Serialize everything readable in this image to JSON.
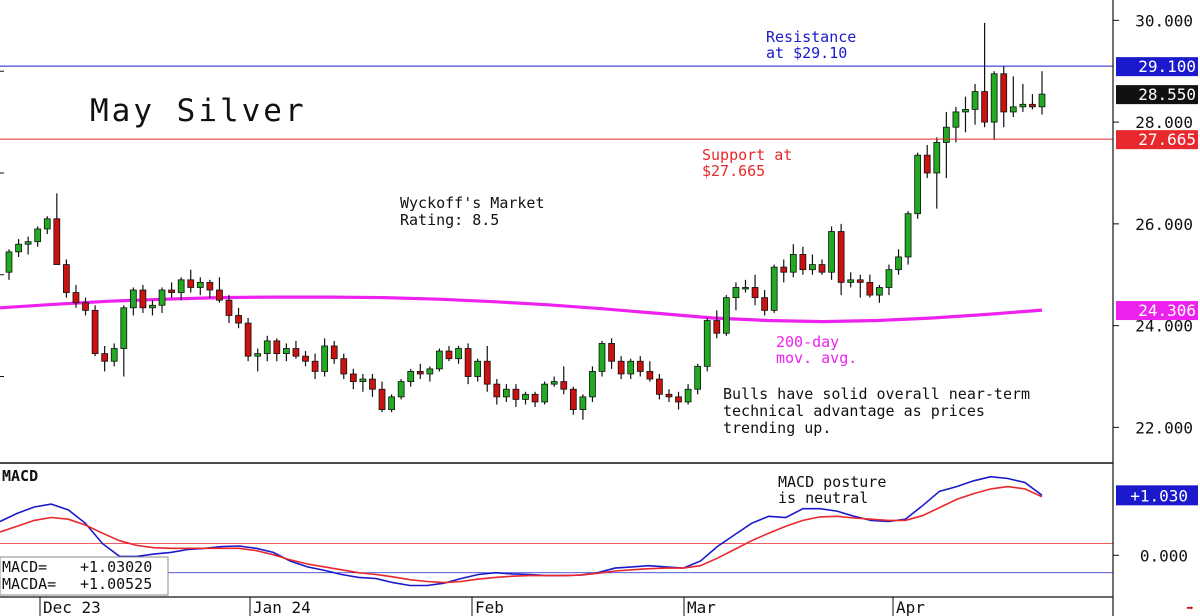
{
  "chart_data": [
    {
      "type": "candlestick",
      "title": "May Silver",
      "rating": [
        "Wyckoff's Market",
        "Rating: 8.5"
      ],
      "commentary": [
        "Bulls have solid overall near-term",
        "technical advantage as prices",
        "trending up."
      ],
      "ylim": [
        21.3,
        30.4
      ],
      "yticks": [
        {
          "value": 30,
          "label": "30.000"
        },
        {
          "value": 28,
          "label": "28.000"
        },
        {
          "value": 26,
          "label": "26.000"
        },
        {
          "value": 24,
          "label": "24.000"
        },
        {
          "value": 22,
          "label": "22.000"
        }
      ],
      "last_price": {
        "value": 28.55,
        "label": "28.550"
      },
      "resistance": {
        "value": 29.1,
        "label": "29.100",
        "text": [
          "Resistance",
          "at $29.10"
        ],
        "color": "#1a1acc"
      },
      "support": {
        "value": 27.665,
        "label": "27.665",
        "text": [
          "Support at",
          "$27.665"
        ],
        "color": "#e8282c"
      },
      "moving_average": {
        "label": "24.306",
        "text": [
          "200-day",
          "mov. avg."
        ],
        "color": "#ee22ee",
        "values": [
          24.35,
          24.42,
          24.48,
          24.52,
          24.55,
          24.56,
          24.56,
          24.55,
          24.52,
          24.47,
          24.41,
          24.33,
          24.24,
          24.15,
          24.1,
          24.08,
          24.1,
          24.15,
          24.22,
          24.306
        ]
      },
      "x_labels": [
        "Dec 23",
        "Jan 24",
        "Feb",
        "Mar",
        "Apr"
      ],
      "colors": {
        "up": "#22aa22",
        "down": "#cc1111",
        "wick": "#111111"
      },
      "candles": [
        [
          25.05,
          25.5,
          24.9,
          25.45
        ],
        [
          25.45,
          25.7,
          25.35,
          25.6
        ],
        [
          25.6,
          25.75,
          25.4,
          25.65
        ],
        [
          25.65,
          25.95,
          25.55,
          25.9
        ],
        [
          25.9,
          26.15,
          25.8,
          26.1
        ],
        [
          26.1,
          26.6,
          25.2,
          25.2
        ],
        [
          25.2,
          25.3,
          24.55,
          24.65
        ],
        [
          24.65,
          24.8,
          24.35,
          24.45
        ],
        [
          24.45,
          24.55,
          24.2,
          24.3
        ],
        [
          24.3,
          24.4,
          23.4,
          23.45
        ],
        [
          23.45,
          23.6,
          23.1,
          23.3
        ],
        [
          23.3,
          23.65,
          23.2,
          23.55
        ],
        [
          23.55,
          24.4,
          23.0,
          24.35
        ],
        [
          24.35,
          24.75,
          24.2,
          24.7
        ],
        [
          24.7,
          24.8,
          24.25,
          24.35
        ],
        [
          24.35,
          24.5,
          24.2,
          24.4
        ],
        [
          24.4,
          24.75,
          24.25,
          24.7
        ],
        [
          24.7,
          24.85,
          24.55,
          24.65
        ],
        [
          24.65,
          24.95,
          24.5,
          24.9
        ],
        [
          24.9,
          25.1,
          24.65,
          24.75
        ],
        [
          24.75,
          24.95,
          24.6,
          24.85
        ],
        [
          24.85,
          24.9,
          24.55,
          24.7
        ],
        [
          24.7,
          24.95,
          24.45,
          24.5
        ],
        [
          24.5,
          24.6,
          24.05,
          24.2
        ],
        [
          24.2,
          24.35,
          23.95,
          24.05
        ],
        [
          24.05,
          24.15,
          23.3,
          23.4
        ],
        [
          23.4,
          23.55,
          23.1,
          23.45
        ],
        [
          23.45,
          23.8,
          23.3,
          23.7
        ],
        [
          23.7,
          23.75,
          23.3,
          23.45
        ],
        [
          23.45,
          23.65,
          23.3,
          23.55
        ],
        [
          23.55,
          23.7,
          23.35,
          23.4
        ],
        [
          23.4,
          23.5,
          23.2,
          23.3
        ],
        [
          23.3,
          23.45,
          22.95,
          23.1
        ],
        [
          23.1,
          23.75,
          23.0,
          23.6
        ],
        [
          23.6,
          23.7,
          23.25,
          23.35
        ],
        [
          23.35,
          23.45,
          22.95,
          23.05
        ],
        [
          23.05,
          23.15,
          22.75,
          22.9
        ],
        [
          22.9,
          23.05,
          22.7,
          22.95
        ],
        [
          22.95,
          23.05,
          22.6,
          22.75
        ],
        [
          22.75,
          22.9,
          22.3,
          22.35
        ],
        [
          22.35,
          22.65,
          22.3,
          22.6
        ],
        [
          22.6,
          22.95,
          22.55,
          22.9
        ],
        [
          22.9,
          23.15,
          22.8,
          23.1
        ],
        [
          23.1,
          23.25,
          22.95,
          23.05
        ],
        [
          23.05,
          23.2,
          22.9,
          23.15
        ],
        [
          23.15,
          23.55,
          23.1,
          23.5
        ],
        [
          23.5,
          23.6,
          23.3,
          23.35
        ],
        [
          23.35,
          23.6,
          23.25,
          23.55
        ],
        [
          23.55,
          23.65,
          22.85,
          23.0
        ],
        [
          23.0,
          23.35,
          22.9,
          23.3
        ],
        [
          23.3,
          23.6,
          22.7,
          22.85
        ],
        [
          22.85,
          22.95,
          22.45,
          22.6
        ],
        [
          22.6,
          22.85,
          22.5,
          22.75
        ],
        [
          22.75,
          22.85,
          22.4,
          22.55
        ],
        [
          22.55,
          22.7,
          22.45,
          22.65
        ],
        [
          22.65,
          22.7,
          22.4,
          22.5
        ],
        [
          22.5,
          22.9,
          22.45,
          22.85
        ],
        [
          22.85,
          23.0,
          22.8,
          22.9
        ],
        [
          22.9,
          23.2,
          22.65,
          22.75
        ],
        [
          22.75,
          22.8,
          22.25,
          22.35
        ],
        [
          22.35,
          22.65,
          22.15,
          22.6
        ],
        [
          22.6,
          23.2,
          22.5,
          23.1
        ],
        [
          23.1,
          23.7,
          23.0,
          23.65
        ],
        [
          23.65,
          23.75,
          23.15,
          23.3
        ],
        [
          23.3,
          23.4,
          22.95,
          23.05
        ],
        [
          23.05,
          23.35,
          22.95,
          23.3
        ],
        [
          23.3,
          23.4,
          23.0,
          23.1
        ],
        [
          23.1,
          23.3,
          22.9,
          22.95
        ],
        [
          22.95,
          23.05,
          22.55,
          22.65
        ],
        [
          22.65,
          22.75,
          22.5,
          22.6
        ],
        [
          22.6,
          22.7,
          22.35,
          22.5
        ],
        [
          22.5,
          22.85,
          22.45,
          22.75
        ],
        [
          22.75,
          23.25,
          22.65,
          23.2
        ],
        [
          23.2,
          24.15,
          23.1,
          24.1
        ],
        [
          24.1,
          24.3,
          23.75,
          23.85
        ],
        [
          23.85,
          24.6,
          23.8,
          24.55
        ],
        [
          24.55,
          24.85,
          24.3,
          24.75
        ],
        [
          24.75,
          24.9,
          24.65,
          24.75
        ],
        [
          24.75,
          25.0,
          24.4,
          24.55
        ],
        [
          24.55,
          24.7,
          24.2,
          24.3
        ],
        [
          24.3,
          25.2,
          24.25,
          25.15
        ],
        [
          25.15,
          25.3,
          24.85,
          25.05
        ],
        [
          25.05,
          25.6,
          24.95,
          25.4
        ],
        [
          25.4,
          25.55,
          25.0,
          25.1
        ],
        [
          25.1,
          25.4,
          25.0,
          25.2
        ],
        [
          25.2,
          25.3,
          25.0,
          25.05
        ],
        [
          25.05,
          25.95,
          24.9,
          25.85
        ],
        [
          25.85,
          26.0,
          24.6,
          24.85
        ],
        [
          24.85,
          25.05,
          24.75,
          24.9
        ],
        [
          24.9,
          25.0,
          24.55,
          24.85
        ],
        [
          24.85,
          25.0,
          24.55,
          24.6
        ],
        [
          24.6,
          24.8,
          24.45,
          24.75
        ],
        [
          24.75,
          25.2,
          24.6,
          25.1
        ],
        [
          25.1,
          25.5,
          25.0,
          25.35
        ],
        [
          25.35,
          26.25,
          25.2,
          26.2
        ],
        [
          26.2,
          27.4,
          26.1,
          27.35
        ],
        [
          27.35,
          27.55,
          26.9,
          27.0
        ],
        [
          27.0,
          27.7,
          26.3,
          27.6
        ],
        [
          27.6,
          28.2,
          26.9,
          27.9
        ],
        [
          27.9,
          28.3,
          27.6,
          28.2
        ],
        [
          28.2,
          28.5,
          27.8,
          28.25
        ],
        [
          28.25,
          28.75,
          27.95,
          28.6
        ],
        [
          28.6,
          29.95,
          27.9,
          28.0
        ],
        [
          28.0,
          29.0,
          27.65,
          28.95
        ],
        [
          28.95,
          29.1,
          27.9,
          28.2
        ],
        [
          28.2,
          28.9,
          28.1,
          28.3
        ],
        [
          28.3,
          28.75,
          28.2,
          28.35
        ],
        [
          28.35,
          28.55,
          28.25,
          28.3
        ],
        [
          28.3,
          29.0,
          28.15,
          28.55
        ]
      ]
    },
    {
      "type": "line",
      "title": "MACD",
      "ylim": [
        -0.7,
        1.5
      ],
      "yticks": [
        {
          "value": 0,
          "label": "0.000"
        }
      ],
      "reference_lines": [
        {
          "value": 0.2,
          "color": "#e8282c"
        },
        {
          "value": -0.3,
          "color": "#2222cc"
        }
      ],
      "last_label": "+1.030",
      "note": [
        "MACD posture",
        "is neutral"
      ],
      "readout": [
        {
          "label": "MACD=",
          "value": "+1.03020"
        },
        {
          "label": "MACDA=",
          "value": "+1.00525"
        }
      ],
      "series": [
        {
          "key": "macd",
          "color": "#1a1acc",
          "values": [
            0.58,
            0.72,
            0.83,
            0.88,
            0.78,
            0.55,
            0.2,
            -0.02,
            -0.02,
            0.02,
            0.05,
            0.1,
            0.12,
            0.15,
            0.16,
            0.12,
            0.05,
            -0.1,
            -0.2,
            -0.26,
            -0.33,
            -0.38,
            -0.4,
            -0.47,
            -0.52,
            -0.52,
            -0.48,
            -0.4,
            -0.33,
            -0.3,
            -0.32,
            -0.33,
            -0.35,
            -0.35,
            -0.34,
            -0.3,
            -0.22,
            -0.2,
            -0.18,
            -0.2,
            -0.22,
            -0.1,
            0.15,
            0.35,
            0.55,
            0.67,
            0.65,
            0.8,
            0.8,
            0.76,
            0.67,
            0.6,
            0.58,
            0.62,
            0.85,
            1.1,
            1.18,
            1.28,
            1.35,
            1.32,
            1.25,
            1.03
          ]
        },
        {
          "key": "macda",
          "color": "#e8282c",
          "values": [
            0.4,
            0.5,
            0.6,
            0.65,
            0.62,
            0.52,
            0.38,
            0.25,
            0.17,
            0.13,
            0.12,
            0.12,
            0.12,
            0.12,
            0.12,
            0.08,
            0.01,
            -0.08,
            -0.15,
            -0.2,
            -0.25,
            -0.3,
            -0.33,
            -0.37,
            -0.42,
            -0.45,
            -0.47,
            -0.45,
            -0.41,
            -0.38,
            -0.36,
            -0.35,
            -0.35,
            -0.35,
            -0.34,
            -0.31,
            -0.27,
            -0.25,
            -0.23,
            -0.22,
            -0.22,
            -0.18,
            -0.05,
            0.1,
            0.25,
            0.38,
            0.5,
            0.6,
            0.66,
            0.67,
            0.64,
            0.62,
            0.6,
            0.6,
            0.68,
            0.82,
            0.96,
            1.06,
            1.14,
            1.18,
            1.14,
            1.005
          ]
        }
      ]
    }
  ],
  "ui": {
    "scroll_arrow": "➡"
  }
}
